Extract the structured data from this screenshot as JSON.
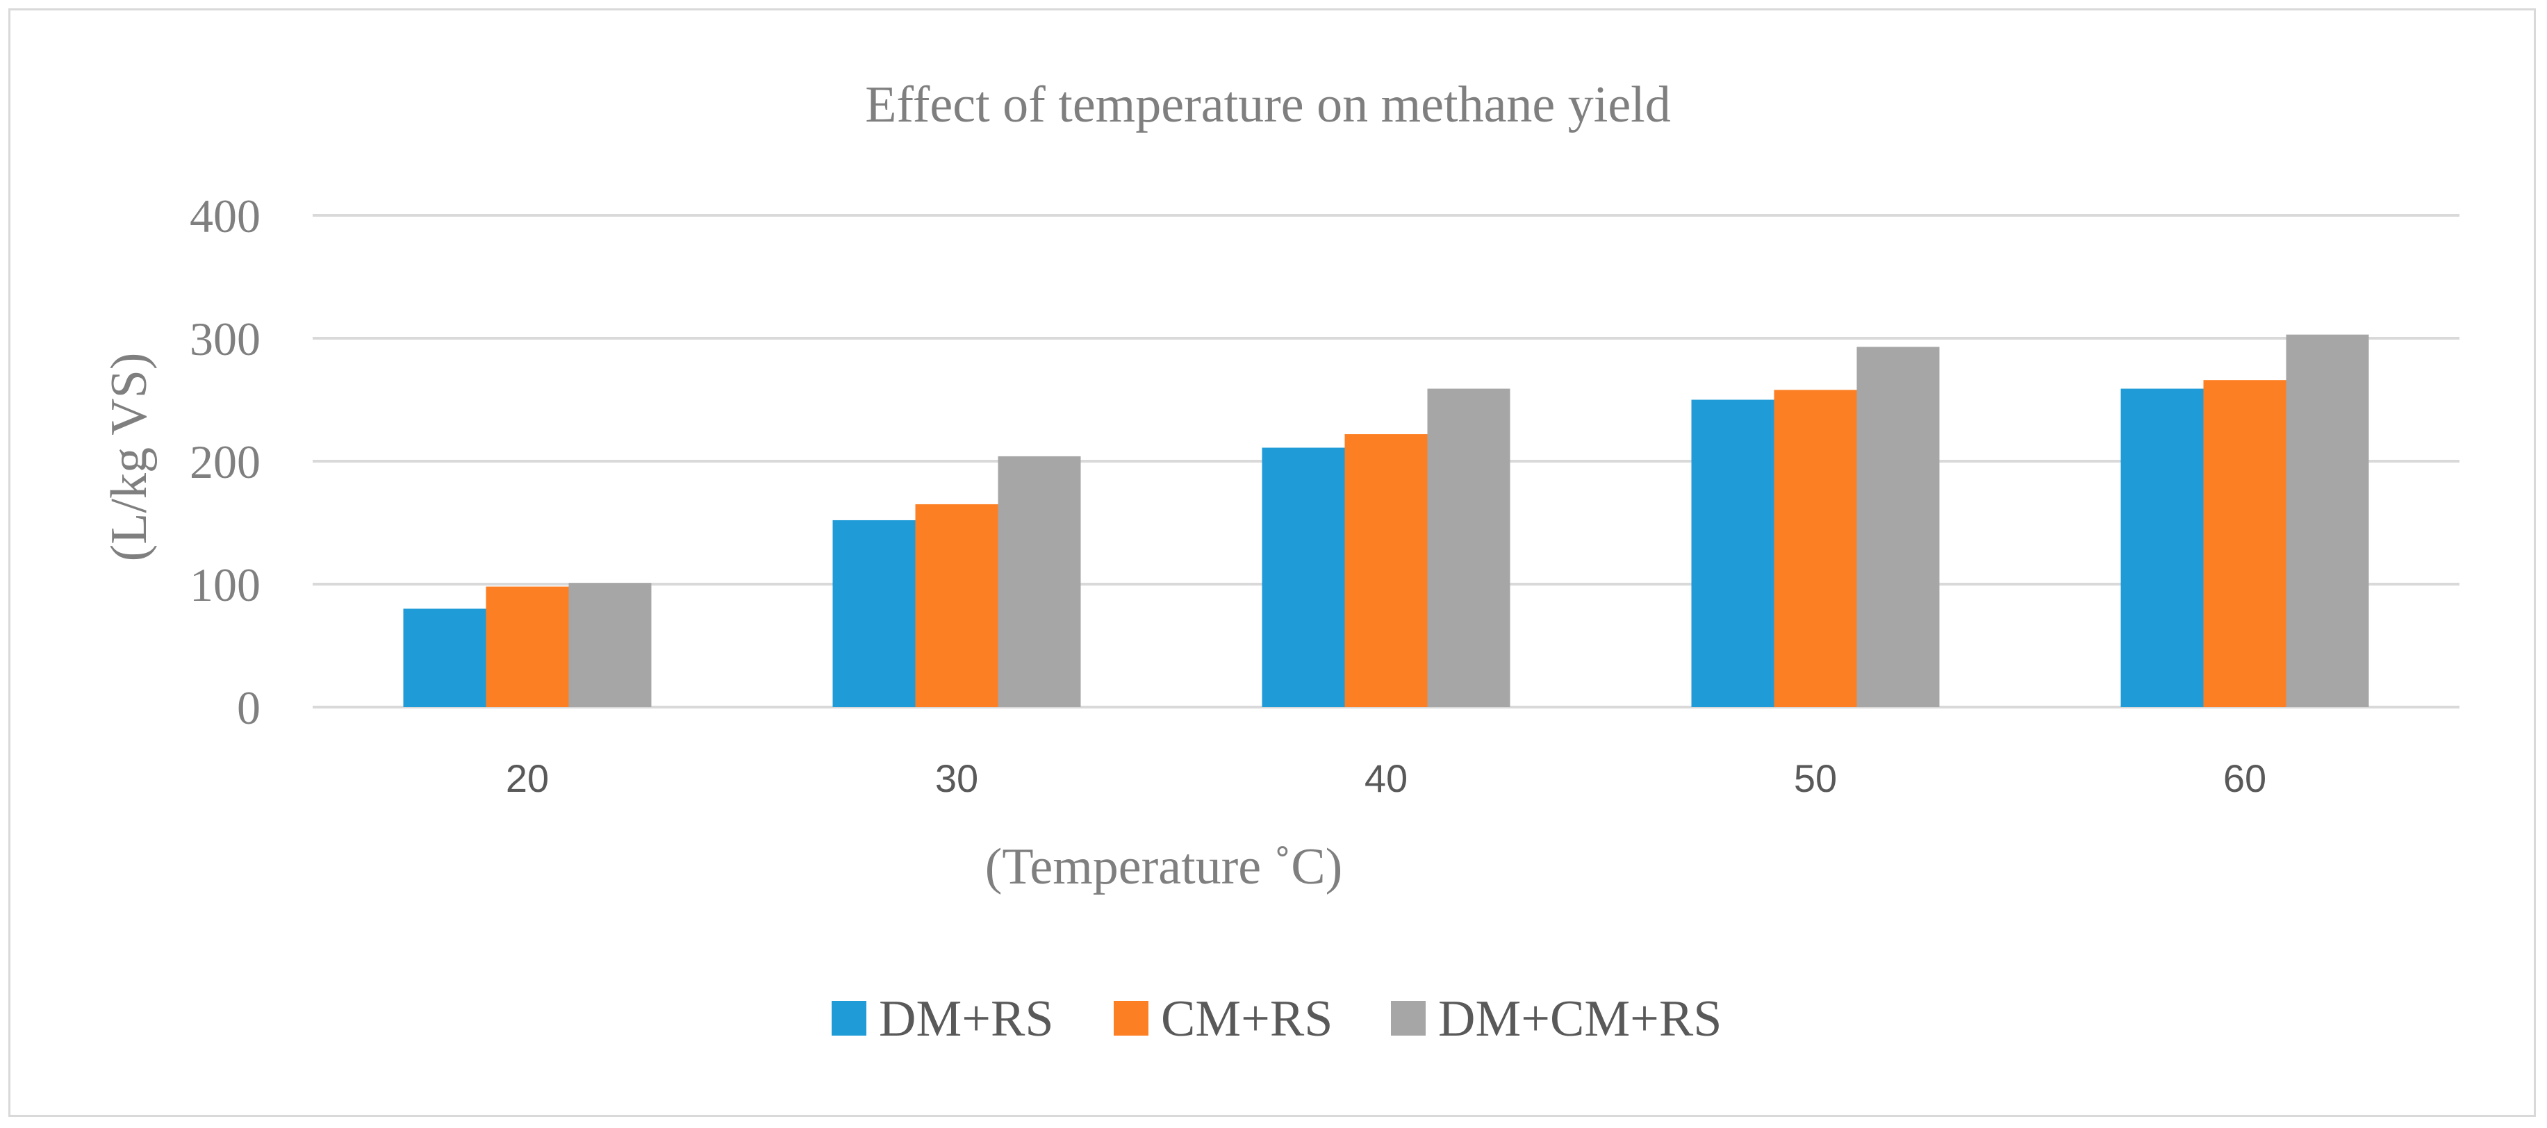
{
  "chart_data": {
    "type": "bar",
    "title": "Effect of temperature on methane yield",
    "xlabel": "(Temperature ˚C)",
    "ylabel": "(L/kg VS)",
    "categories": [
      "20",
      "30",
      "40",
      "50",
      "60"
    ],
    "ylim": [
      0,
      400
    ],
    "yticks": [
      "0",
      "100",
      "200",
      "300",
      "400"
    ],
    "grid": true,
    "legend_position": "bottom",
    "series": [
      {
        "name": "DM+RS",
        "color": "#1f9bd7",
        "values": [
          80,
          152,
          211,
          250,
          259
        ]
      },
      {
        "name": "CM+RS",
        "color": "#fd7f23",
        "values": [
          98,
          165,
          222,
          258,
          266
        ]
      },
      {
        "name": "DM+CM+RS",
        "color": "#a6a6a6",
        "values": [
          101,
          204,
          259,
          293,
          303
        ]
      }
    ]
  }
}
